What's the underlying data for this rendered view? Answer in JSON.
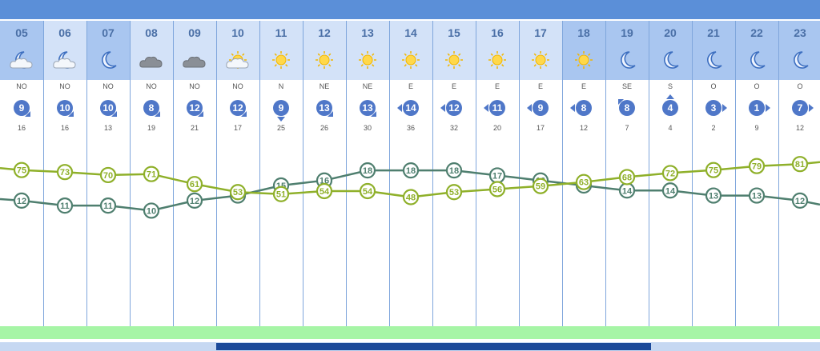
{
  "chart_data": {
    "type": "line",
    "hours": [
      "05",
      "06",
      "07",
      "08",
      "09",
      "10",
      "11",
      "12",
      "13",
      "14",
      "15",
      "16",
      "17",
      "18",
      "19",
      "20",
      "21",
      "22",
      "23"
    ],
    "wind_directions": [
      "NO",
      "NO",
      "NO",
      "NO",
      "NO",
      "NO",
      "N",
      "NE",
      "NE",
      "E",
      "E",
      "E",
      "E",
      "E",
      "SE",
      "S",
      "O",
      "O",
      "O"
    ],
    "wind_speeds": [
      "9",
      "10",
      "10",
      "8",
      "12",
      "12",
      "9",
      "13",
      "13",
      "14",
      "12",
      "11",
      "9",
      "8",
      "8",
      "4",
      "3",
      "1",
      "7"
    ],
    "wind_gusts": [
      "16",
      "16",
      "13",
      "19",
      "21",
      "17",
      "25",
      "26",
      "30",
      "36",
      "32",
      "20",
      "17",
      "12",
      "7",
      "4",
      "2",
      "9",
      "12"
    ],
    "weather_icons": [
      "moon-cloud-icon",
      "moon-cloud-icon",
      "moon-icon",
      "cloud-icon",
      "cloud-icon",
      "sun-cloud-icon",
      "sun-icon",
      "sun-icon",
      "sun-icon",
      "sun-icon",
      "sun-icon",
      "sun-icon",
      "sun-icon",
      "sun-icon",
      "moon-icon",
      "moon-icon",
      "moon-icon",
      "moon-icon",
      "moon-icon"
    ],
    "day_hours": [
      false,
      true,
      false,
      true,
      true,
      true,
      true,
      true,
      true,
      true,
      true,
      true,
      true,
      false,
      false,
      false,
      false,
      false,
      false
    ],
    "series": [
      {
        "values": [
          12,
          11,
          11,
          10,
          12,
          13,
          15,
          16,
          18,
          18,
          18,
          17,
          16,
          15,
          14,
          14,
          13,
          13,
          12
        ],
        "color": "#4f7f6f"
      },
      {
        "values": [
          75,
          73,
          70,
          71,
          61,
          53,
          51,
          54,
          54,
          48,
          53,
          56,
          59,
          63,
          68,
          72,
          75,
          79,
          81
        ],
        "color": "#8fb02a"
      }
    ],
    "edge_values": {
      "temperature_left": 12.3,
      "temperature_right": 11.2,
      "humidity_left": 77,
      "humidity_right": 83
    },
    "temperature_range": [
      -13,
      36
    ],
    "humidity_range": [
      -81,
      165
    ]
  }
}
